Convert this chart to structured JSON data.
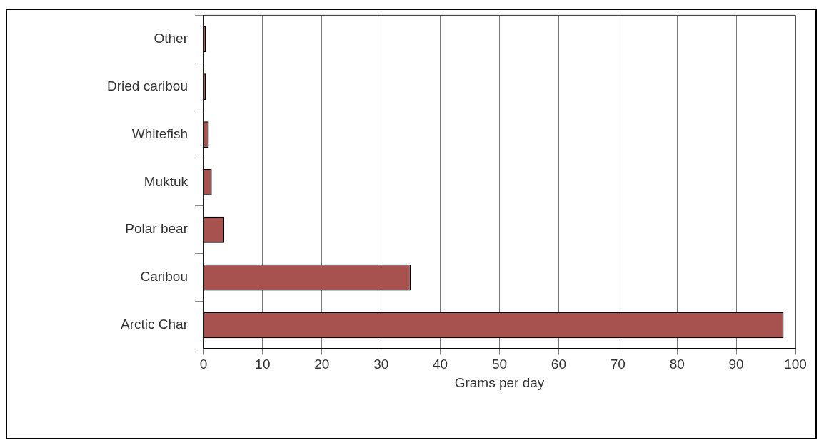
{
  "chart_data": {
    "type": "bar",
    "orientation": "horizontal",
    "xlabel": "Grams per day",
    "categories": [
      "Other",
      "Dried caribou",
      "Whitefish",
      "Muktuk",
      "Polar bear",
      "Caribou",
      "Arctic Char"
    ],
    "values": [
      0.4,
      0.4,
      0.9,
      1.4,
      3.5,
      35,
      98
    ],
    "color": "#a8524f",
    "xlim": [
      0,
      100
    ],
    "xticks": [
      0,
      10,
      20,
      30,
      40,
      50,
      60,
      70,
      80,
      90,
      100
    ],
    "grid": "x",
    "legend": false
  }
}
